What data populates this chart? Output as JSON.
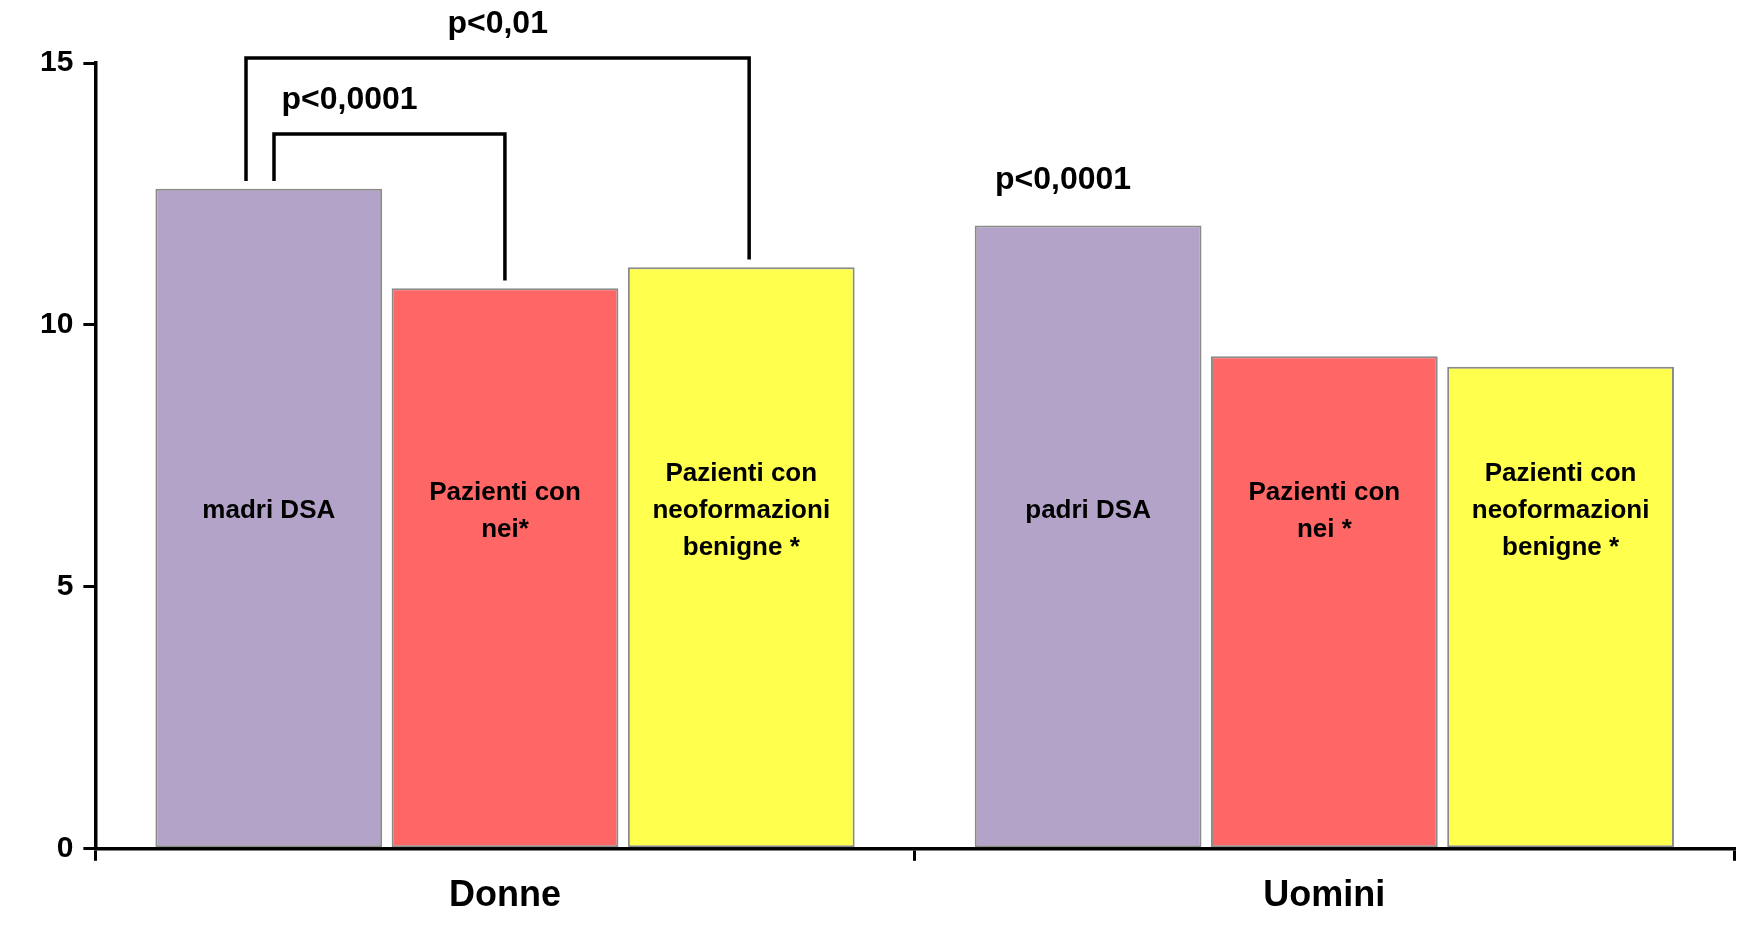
{
  "chart_data": {
    "type": "bar",
    "categories": [
      "Donne",
      "Uomini"
    ],
    "series": [
      {
        "color": "#b3a3c8",
        "values": [
          12.6,
          11.9
        ]
      },
      {
        "color": "#ff6666",
        "values": [
          10.7,
          9.4
        ]
      },
      {
        "color": "#ffff4d",
        "values": [
          11.1,
          9.2
        ]
      }
    ],
    "ylim": [
      0,
      15
    ],
    "yticks": [
      0,
      5,
      10,
      15
    ],
    "grid": false,
    "legend": false,
    "annotations": [
      "madri DSA",
      "Pazienti con nei*",
      "Pazienti con neoformazioni benigne *",
      "padri DSA",
      "Pazienti con nei *",
      "Pazienti con neoformazioni benigne *",
      "p<0,01",
      "p<0,0001",
      "p<0,0001"
    ]
  }
}
